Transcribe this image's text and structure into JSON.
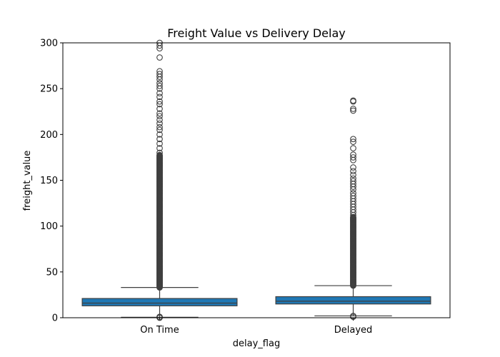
{
  "chart_data": {
    "type": "box",
    "title": "Freight Value vs Delivery Delay",
    "xlabel": "delay_flag",
    "ylabel": "freight_value",
    "ylim": [
      0,
      300
    ],
    "yticks": [
      0,
      50,
      100,
      150,
      200,
      250,
      300
    ],
    "grid": false,
    "box_color": "#1f77b4",
    "categories": [
      "On Time",
      "Delayed"
    ],
    "boxes": [
      {
        "category": "On Time",
        "whisker_low": 0.5,
        "q1": 13,
        "median": 16,
        "q3": 21,
        "whisker_high": 33,
        "outliers_dense_range": [
          33,
          178
        ],
        "outliers": [
          0,
          0.5,
          1,
          180,
          185,
          190,
          195,
          200,
          205,
          208,
          212,
          216,
          220,
          223,
          228,
          233,
          236,
          241,
          245,
          250,
          253,
          256,
          260,
          263,
          266,
          269,
          284,
          294,
          297,
          300
        ]
      },
      {
        "category": "Delayed",
        "whisker_low": 2,
        "q1": 15,
        "median": 18,
        "q3": 23,
        "whisker_high": 35,
        "outliers_dense_range": [
          35,
          110
        ],
        "outliers": [
          1,
          2,
          112,
          115,
          118,
          121,
          124,
          127,
          130,
          133,
          136,
          140,
          143,
          146,
          149,
          152,
          156,
          160,
          164,
          172,
          175,
          178,
          185,
          192,
          195,
          226,
          228,
          236,
          237
        ]
      }
    ]
  }
}
